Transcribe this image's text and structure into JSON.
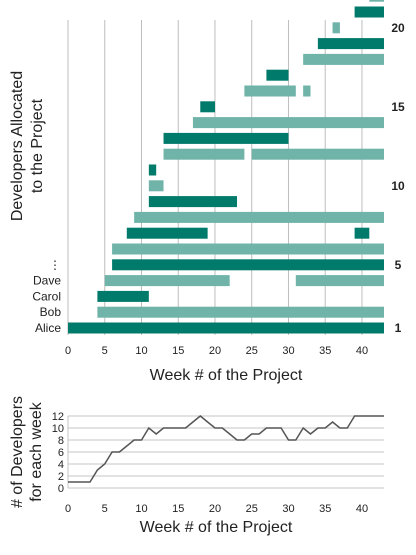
{
  "chart_data": [
    {
      "type": "bar",
      "subtype": "gantt",
      "title": "",
      "xlabel": "Week # of the Project",
      "ylabel": "Developers Allocated to the Project",
      "ylabel_lines": [
        "Developers Allocated",
        "to the Project"
      ],
      "xlim": [
        0,
        43
      ],
      "xticks": [
        0,
        5,
        10,
        15,
        20,
        25,
        30,
        35,
        40
      ],
      "grid": "vertical",
      "colors": {
        "dark": "#007a6a",
        "light": "#6fb3a9"
      },
      "left_labels": [
        {
          "row": 1,
          "text": "Alice"
        },
        {
          "row": 2,
          "text": "Bob"
        },
        {
          "row": 3,
          "text": "Carol"
        },
        {
          "row": 4,
          "text": "Dave"
        },
        {
          "row": 5,
          "text": "⋮"
        }
      ],
      "right_labels": [
        {
          "row": 1,
          "text": "1"
        },
        {
          "row": 5,
          "text": "5"
        },
        {
          "row": 10,
          "text": "10"
        },
        {
          "row": 15,
          "text": "15"
        },
        {
          "row": 20,
          "text": "20"
        }
      ],
      "rows": [
        {
          "row": 1,
          "tone": "dark",
          "segments": [
            [
              0,
              43
            ]
          ]
        },
        {
          "row": 2,
          "tone": "light",
          "segments": [
            [
              4,
              43
            ]
          ]
        },
        {
          "row": 3,
          "tone": "dark",
          "segments": [
            [
              4,
              11
            ]
          ]
        },
        {
          "row": 4,
          "tone": "light",
          "segments": [
            [
              5,
              22
            ],
            [
              31,
              43
            ]
          ]
        },
        {
          "row": 5,
          "tone": "dark",
          "segments": [
            [
              6,
              43
            ]
          ]
        },
        {
          "row": 6,
          "tone": "light",
          "segments": [
            [
              6,
              43
            ]
          ]
        },
        {
          "row": 7,
          "tone": "dark",
          "segments": [
            [
              8,
              19
            ],
            [
              39,
              41
            ]
          ]
        },
        {
          "row": 8,
          "tone": "light",
          "segments": [
            [
              9,
              43
            ]
          ]
        },
        {
          "row": 9,
          "tone": "dark",
          "segments": [
            [
              11,
              23
            ]
          ]
        },
        {
          "row": 10,
          "tone": "light",
          "segments": [
            [
              11,
              13
            ]
          ]
        },
        {
          "row": 11,
          "tone": "dark",
          "segments": [
            [
              11,
              12
            ]
          ]
        },
        {
          "row": 12,
          "tone": "light",
          "segments": [
            [
              13,
              24
            ],
            [
              25,
              43
            ]
          ]
        },
        {
          "row": 13,
          "tone": "dark",
          "segments": [
            [
              13,
              30
            ]
          ]
        },
        {
          "row": 14,
          "tone": "light",
          "segments": [
            [
              17,
              43
            ]
          ]
        },
        {
          "row": 15,
          "tone": "dark",
          "segments": [
            [
              18,
              20
            ]
          ]
        },
        {
          "row": 16,
          "tone": "light",
          "segments": [
            [
              24,
              31
            ],
            [
              32,
              33
            ]
          ]
        },
        {
          "row": 17,
          "tone": "dark",
          "segments": [
            [
              27,
              30
            ]
          ]
        },
        {
          "row": 18,
          "tone": "light",
          "segments": [
            [
              32,
              43
            ]
          ]
        },
        {
          "row": 19,
          "tone": "dark",
          "segments": [
            [
              34,
              43
            ]
          ]
        },
        {
          "row": 20,
          "tone": "light",
          "segments": [
            [
              36,
              37
            ]
          ]
        },
        {
          "row": 21,
          "tone": "dark",
          "segments": [
            [
              39,
              43
            ]
          ]
        },
        {
          "row": 22,
          "tone": "light",
          "segments": [
            [
              41,
              43
            ]
          ]
        }
      ]
    },
    {
      "type": "line",
      "title": "",
      "xlabel": "Week # of the Project",
      "ylabel": "# of Developers for each week",
      "ylabel_lines": [
        "# of Developers",
        "for each week"
      ],
      "xlim": [
        0,
        43
      ],
      "ylim": [
        0,
        12
      ],
      "xticks": [
        0,
        5,
        10,
        15,
        20,
        25,
        30,
        35,
        40
      ],
      "yticks": [
        0,
        2,
        4,
        6,
        8,
        10,
        12
      ],
      "grid": "horizontal",
      "line_color": "#555555",
      "x": [
        0,
        1,
        2,
        3,
        4,
        5,
        6,
        7,
        8,
        9,
        10,
        11,
        12,
        13,
        14,
        15,
        16,
        17,
        18,
        19,
        20,
        21,
        22,
        23,
        24,
        25,
        26,
        27,
        28,
        29,
        30,
        31,
        32,
        33,
        34,
        35,
        36,
        37,
        38,
        39,
        40,
        41,
        42,
        43
      ],
      "y": [
        1,
        1,
        1,
        1,
        3,
        4,
        6,
        6,
        7,
        8,
        8,
        10,
        9,
        10,
        10,
        10,
        10,
        11,
        12,
        11,
        10,
        10,
        9,
        8,
        8,
        9,
        9,
        10,
        10,
        10,
        8,
        8,
        10,
        9,
        10,
        10,
        11,
        10,
        10,
        12,
        12,
        12,
        12,
        12
      ]
    }
  ]
}
